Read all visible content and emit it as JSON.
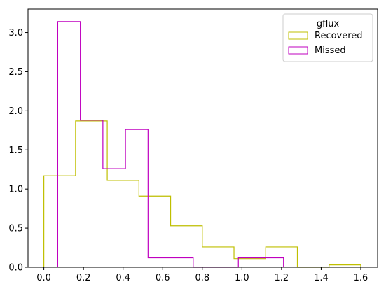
{
  "chart_data": {
    "type": "histogram",
    "title": "",
    "xlabel": "",
    "ylabel": "",
    "xlim": [
      -0.08,
      1.685
    ],
    "ylim": [
      0,
      3.3
    ],
    "xticks": [
      0.0,
      0.2,
      0.4,
      0.6,
      0.8,
      1.0,
      1.2,
      1.4,
      1.6
    ],
    "xtick_labels": [
      "0.0",
      "0.2",
      "0.4",
      "0.6",
      "0.8",
      "1.0",
      "1.2",
      "1.4",
      "1.6"
    ],
    "yticks": [
      0.0,
      0.5,
      1.0,
      1.5,
      2.0,
      2.5,
      3.0
    ],
    "ytick_labels": [
      "0.0",
      "0.5",
      "1.0",
      "1.5",
      "2.0",
      "2.5",
      "3.0"
    ],
    "grid": false,
    "legend": {
      "title": "gflux",
      "placement": "top-right"
    },
    "series": [
      {
        "name": "Recovered",
        "color": "#bfbf00",
        "bin_edges": [
          0.0,
          0.16,
          0.32,
          0.48,
          0.64,
          0.8,
          0.96,
          1.12,
          1.28,
          1.44,
          1.6
        ],
        "values": [
          1.17,
          1.87,
          1.11,
          0.91,
          0.53,
          0.26,
          0.11,
          0.26,
          0.0,
          0.03
        ]
      },
      {
        "name": "Missed",
        "color": "#bf00bf",
        "bin_edges": [
          0.07,
          0.184,
          0.298,
          0.412,
          0.526,
          0.64,
          0.754,
          0.868,
          0.982,
          1.096,
          1.21
        ],
        "values": [
          3.14,
          1.88,
          1.26,
          1.76,
          0.12,
          0.12,
          0.0,
          0.0,
          0.12,
          0.12
        ]
      }
    ]
  }
}
